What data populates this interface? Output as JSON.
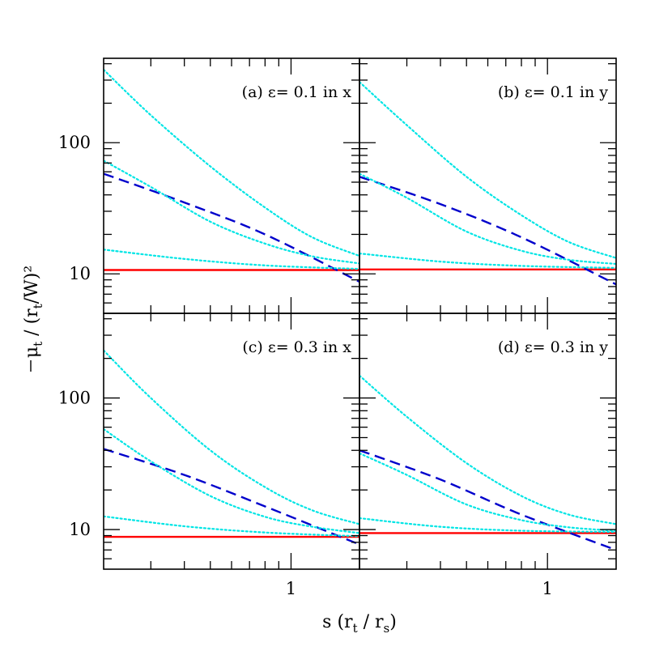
{
  "chart_data": [
    {
      "type": "line",
      "panel_label": "(a) ε= 0.1 in x",
      "xscale": "log",
      "yscale": "log",
      "xlim": [
        0.2,
        1.8
      ],
      "ylim": [
        5,
        440
      ],
      "yticklabels": [
        "10",
        "100"
      ],
      "xticklabels": [],
      "series": [
        {
          "style": "solid",
          "color": "#ff0000",
          "x": [
            0.2,
            1.8
          ],
          "y": [
            10.7,
            10.7
          ]
        },
        {
          "style": "dashed",
          "color": "#0000cc",
          "x": [
            0.2,
            0.4,
            0.8,
            1.8
          ],
          "y": [
            58,
            35,
            20,
            8.7
          ]
        },
        {
          "style": "dotted",
          "color": "#00e5e5",
          "x": [
            0.2,
            0.3,
            0.5,
            0.8,
            1.2,
            1.8
          ],
          "y": [
            360,
            162,
            66,
            32,
            19,
            13.7
          ]
        },
        {
          "style": "dotted",
          "color": "#00e5e5",
          "x": [
            0.2,
            0.3,
            0.5,
            0.8,
            1.2,
            1.8
          ],
          "y": [
            73,
            46,
            25,
            17,
            13.6,
            12.0
          ]
        },
        {
          "style": "dotted",
          "color": "#00e5e5",
          "x": [
            0.2,
            0.4,
            0.8,
            1.8
          ],
          "y": [
            15.3,
            13.0,
            11.6,
            10.9
          ]
        }
      ]
    },
    {
      "type": "line",
      "panel_label": "(b) ε= 0.1 in y",
      "xscale": "log",
      "yscale": "log",
      "xlim": [
        0.2,
        1.8
      ],
      "ylim": [
        5,
        440
      ],
      "yticklabels": [],
      "xticklabels": [],
      "series": [
        {
          "style": "solid",
          "color": "#ff0000",
          "x": [
            0.2,
            1.8
          ],
          "y": [
            10.8,
            10.8
          ]
        },
        {
          "style": "dashed",
          "color": "#0000cc",
          "x": [
            0.2,
            0.4,
            0.8,
            1.8
          ],
          "y": [
            55,
            34,
            19,
            8.3
          ]
        },
        {
          "style": "dotted",
          "color": "#00e5e5",
          "x": [
            0.2,
            0.3,
            0.5,
            0.8,
            1.2,
            1.8
          ],
          "y": [
            290,
            136,
            55,
            28,
            17.5,
            13.2
          ]
        },
        {
          "style": "dotted",
          "color": "#00e5e5",
          "x": [
            0.2,
            0.3,
            0.5,
            0.8,
            1.2,
            1.8
          ],
          "y": [
            58,
            38,
            21,
            15,
            12.8,
            11.9
          ]
        },
        {
          "style": "dotted",
          "color": "#00e5e5",
          "x": [
            0.2,
            0.4,
            0.8,
            1.8
          ],
          "y": [
            14.3,
            12.4,
            11.5,
            11.1
          ]
        }
      ]
    },
    {
      "type": "line",
      "panel_label": "(c) ε= 0.3 in x",
      "xscale": "log",
      "yscale": "log",
      "xlim": [
        0.2,
        1.8
      ],
      "ylim": [
        5,
        440
      ],
      "yticklabels": [
        "10",
        "100"
      ],
      "xticklabels": [
        "1"
      ],
      "series": [
        {
          "style": "solid",
          "color": "#ff0000",
          "x": [
            0.2,
            1.8
          ],
          "y": [
            8.8,
            8.8
          ]
        },
        {
          "style": "dashed",
          "color": "#0000cc",
          "x": [
            0.2,
            0.4,
            0.8,
            1.8
          ],
          "y": [
            41,
            26,
            15,
            7.7
          ]
        },
        {
          "style": "dotted",
          "color": "#00e5e5",
          "x": [
            0.2,
            0.3,
            0.5,
            0.8,
            1.2,
            1.8
          ],
          "y": [
            230,
            100,
            40,
            21,
            14,
            11
          ]
        },
        {
          "style": "dotted",
          "color": "#00e5e5",
          "x": [
            0.2,
            0.3,
            0.5,
            0.8,
            1.2,
            1.8
          ],
          "y": [
            58,
            33,
            18,
            12.5,
            10.5,
            9.4
          ]
        },
        {
          "style": "dotted",
          "color": "#00e5e5",
          "x": [
            0.2,
            0.4,
            0.8,
            1.8
          ],
          "y": [
            12.6,
            10.6,
            9.5,
            8.9
          ]
        }
      ]
    },
    {
      "type": "line",
      "panel_label": "(d) ε= 0.3 in y",
      "xscale": "log",
      "yscale": "log",
      "xlim": [
        0.2,
        1.8
      ],
      "ylim": [
        5,
        440
      ],
      "yticklabels": [],
      "xticklabels": [
        "1"
      ],
      "series": [
        {
          "style": "solid",
          "color": "#ff0000",
          "x": [
            0.2,
            1.8
          ],
          "y": [
            9.4,
            9.4
          ]
        },
        {
          "style": "dashed",
          "color": "#0000cc",
          "x": [
            0.2,
            0.4,
            0.8,
            1.8
          ],
          "y": [
            40,
            24,
            13,
            7.0
          ]
        },
        {
          "style": "dotted",
          "color": "#00e5e5",
          "x": [
            0.2,
            0.3,
            0.5,
            0.8,
            1.2,
            1.8
          ],
          "y": [
            148,
            72,
            32,
            18,
            13,
            11
          ]
        },
        {
          "style": "dotted",
          "color": "#00e5e5",
          "x": [
            0.2,
            0.3,
            0.5,
            0.8,
            1.2,
            1.8
          ],
          "y": [
            38,
            26,
            15.5,
            11.8,
            10.4,
            9.8
          ]
        },
        {
          "style": "dotted",
          "color": "#00e5e5",
          "x": [
            0.2,
            0.4,
            0.8,
            1.8
          ],
          "y": [
            12.2,
            10.5,
            9.8,
            9.6
          ]
        }
      ]
    }
  ]
}
